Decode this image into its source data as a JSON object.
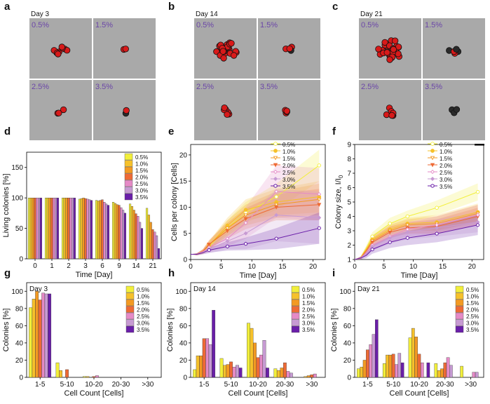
{
  "colors": {
    "series": [
      "#f2ef3a",
      "#f6c12b",
      "#f39a22",
      "#ee6a35",
      "#e58ac6",
      "#c79ad3",
      "#6a1ea9"
    ],
    "micro_bg": "#a9a9a9",
    "cell_red": "#d81a1a",
    "micro_pct_text": "#6b46a8"
  },
  "micro_panels": [
    {
      "letter": "a",
      "day": "Day 3",
      "quads": [
        {
          "label": "0.5%"
        },
        {
          "label": "1.5%"
        },
        {
          "label": "2.5%"
        },
        {
          "label": "3.5%"
        }
      ]
    },
    {
      "letter": "b",
      "day": "Day 14",
      "quads": [
        {
          "label": "0.5%"
        },
        {
          "label": "1.5%"
        },
        {
          "label": "2.5%"
        },
        {
          "label": "3.5%"
        }
      ]
    },
    {
      "letter": "c",
      "day": "Day 21",
      "quads": [
        {
          "label": "0.5%"
        },
        {
          "label": "1.5%"
        },
        {
          "label": "2.5%"
        },
        {
          "label": "3.5%"
        }
      ]
    }
  ],
  "chart_data": [
    {
      "id": "d",
      "type": "bar",
      "xlabel": "Time [Day]",
      "ylabel": "Living colonies [%]",
      "ylim": [
        0,
        175
      ],
      "yticks": [
        0,
        50,
        100,
        150
      ],
      "categories": [
        "0",
        "1",
        "2",
        "3",
        "6",
        "9",
        "14",
        "21"
      ],
      "series": [
        {
          "name": "0.5%",
          "values": [
            100,
            100,
            100,
            98,
            96,
            93,
            90,
            83
          ]
        },
        {
          "name": "1.0%",
          "values": [
            100,
            100,
            100,
            99,
            95,
            91,
            86,
            72
          ]
        },
        {
          "name": "1.5%",
          "values": [
            100,
            100,
            100,
            100,
            96,
            89,
            80,
            60
          ]
        },
        {
          "name": "2.0%",
          "values": [
            100,
            100,
            100,
            99,
            97,
            88,
            74,
            48
          ]
        },
        {
          "name": "2.5%",
          "values": [
            100,
            100,
            100,
            98,
            93,
            84,
            70,
            44
          ]
        },
        {
          "name": "3.0%",
          "values": [
            100,
            100,
            100,
            97,
            90,
            80,
            60,
            38
          ]
        },
        {
          "name": "3.5%",
          "values": [
            100,
            100,
            100,
            96,
            88,
            75,
            50,
            17
          ]
        }
      ]
    },
    {
      "id": "e",
      "type": "line",
      "xlabel": "Time [Day]",
      "ylabel": "Cells per colony [Cells]",
      "xlim": [
        0,
        22
      ],
      "ylim": [
        0,
        22
      ],
      "xticks": [
        0,
        5,
        10,
        15,
        20
      ],
      "yticks": [
        0,
        5,
        10,
        15,
        20
      ],
      "x": [
        0,
        1,
        2,
        3,
        6,
        9,
        14,
        21
      ],
      "series": [
        {
          "name": "0.5%",
          "marker": "circle-open",
          "values": [
            1,
            1,
            1.5,
            2.5,
            6,
            9,
            12,
            18
          ],
          "spread": [
            0,
            0.2,
            0.4,
            0.8,
            1.5,
            2,
            2.5,
            3
          ]
        },
        {
          "name": "1.0%",
          "marker": "circle",
          "values": [
            1,
            1,
            1.5,
            2.7,
            6.5,
            9.5,
            11,
            12
          ],
          "spread": [
            0,
            0.2,
            0.4,
            0.8,
            1.5,
            2,
            2.5,
            3
          ]
        },
        {
          "name": "1.5%",
          "marker": "triangle-down-open",
          "values": [
            1,
            1,
            1.6,
            2.8,
            6,
            8.5,
            10.5,
            11.5
          ],
          "spread": [
            0,
            0.2,
            0.4,
            0.8,
            1.5,
            2,
            2.5,
            3
          ]
        },
        {
          "name": "2.0%",
          "marker": "triangle-down",
          "values": [
            1,
            1,
            1.6,
            2.9,
            5.5,
            7.8,
            10,
            10.5
          ],
          "spread": [
            0,
            0.2,
            0.4,
            0.8,
            1.5,
            2,
            2.5,
            3
          ]
        },
        {
          "name": "2.5%",
          "marker": "diamond-open",
          "values": [
            1,
            1,
            1.5,
            2.3,
            4,
            7,
            13,
            12.5
          ],
          "spread": [
            0,
            0.2,
            0.4,
            0.8,
            1.5,
            3,
            5,
            5
          ]
        },
        {
          "name": "3.0%",
          "marker": "diamond",
          "values": [
            1,
            1,
            1.4,
            2,
            3.5,
            5,
            8.5,
            8
          ],
          "spread": [
            0,
            0.2,
            0.4,
            0.8,
            1.5,
            3,
            5,
            5
          ]
        },
        {
          "name": "3.5%",
          "marker": "hexagon-open",
          "values": [
            1,
            1,
            1.3,
            1.8,
            2.5,
            3,
            4,
            6
          ],
          "spread": [
            0,
            0.2,
            0.3,
            0.5,
            0.8,
            1.2,
            2,
            3
          ]
        }
      ]
    },
    {
      "id": "f",
      "type": "line",
      "xlabel": "Time [Day]",
      "ylabel": "Colony size, I/I",
      "ylabel_sub": "0",
      "xlim": [
        0,
        22
      ],
      "ylim": [
        1,
        9
      ],
      "xticks": [
        0,
        5,
        10,
        15,
        20
      ],
      "yticks": [
        1,
        2,
        3,
        4,
        5,
        6,
        7,
        8,
        9
      ],
      "x": [
        0,
        1,
        2,
        3,
        6,
        9,
        14,
        21
      ],
      "series": [
        {
          "name": "0.5%",
          "marker": "circle-open",
          "values": [
            1,
            1.1,
            1.8,
            2.6,
            3.5,
            4,
            4.6,
            5.7
          ],
          "spread": [
            0,
            0.1,
            0.2,
            0.3,
            0.4,
            0.4,
            0.5,
            0.6
          ]
        },
        {
          "name": "1.0%",
          "marker": "circle",
          "values": [
            1,
            1.1,
            1.7,
            2.4,
            3.1,
            3.5,
            3.6,
            4.3
          ],
          "spread": [
            0,
            0.1,
            0.2,
            0.3,
            0.4,
            0.4,
            0.5,
            0.6
          ]
        },
        {
          "name": "1.5%",
          "marker": "triangle-down-open",
          "values": [
            1,
            1.1,
            1.7,
            2.3,
            3,
            3.4,
            3.5,
            4.2
          ],
          "spread": [
            0,
            0.1,
            0.2,
            0.3,
            0.4,
            0.4,
            0.5,
            0.6
          ]
        },
        {
          "name": "2.0%",
          "marker": "triangle-down",
          "values": [
            1,
            1.1,
            1.6,
            2.2,
            2.9,
            3.2,
            3.3,
            4
          ],
          "spread": [
            0,
            0.1,
            0.2,
            0.3,
            0.4,
            0.4,
            0.5,
            0.6
          ]
        },
        {
          "name": "2.5%",
          "marker": "diamond-open",
          "values": [
            1,
            1.1,
            1.5,
            2,
            2.6,
            3.1,
            3.4,
            4.1
          ],
          "spread": [
            0,
            0.1,
            0.2,
            0.3,
            0.4,
            0.5,
            0.6,
            0.7
          ]
        },
        {
          "name": "3.0%",
          "marker": "diamond",
          "values": [
            1,
            1.1,
            1.4,
            1.9,
            2.5,
            2.9,
            3.2,
            3.6
          ],
          "spread": [
            0,
            0.1,
            0.2,
            0.3,
            0.4,
            0.5,
            0.6,
            0.7
          ]
        },
        {
          "name": "3.5%",
          "marker": "hexagon-open",
          "values": [
            1,
            1.1,
            1.3,
            1.7,
            2.2,
            2.5,
            2.8,
            3.4
          ],
          "spread": [
            0,
            0.1,
            0.2,
            0.3,
            0.4,
            0.5,
            0.6,
            0.7
          ]
        }
      ]
    },
    {
      "id": "g",
      "type": "bar",
      "day": "Day 3",
      "xlabel": "Cell Count [Cells]",
      "ylabel": "Colonies [%]",
      "ylim": [
        0,
        110
      ],
      "yticks": [
        0,
        20,
        40,
        60,
        80,
        100
      ],
      "categories": [
        "1-5",
        "5-10",
        "10-20",
        "20-30",
        ">30"
      ],
      "series": [
        {
          "name": "0.5%",
          "values": [
            81,
            17,
            1,
            0,
            0
          ]
        },
        {
          "name": "1.0%",
          "values": [
            91,
            8,
            1,
            0,
            0
          ]
        },
        {
          "name": "1.5%",
          "values": [
            100,
            0,
            0,
            0,
            0
          ]
        },
        {
          "name": "2.0%",
          "values": [
            90,
            9,
            1,
            0,
            0
          ]
        },
        {
          "name": "2.5%",
          "values": [
            98,
            0,
            2,
            0,
            0
          ]
        },
        {
          "name": "3.0%",
          "values": [
            97,
            0,
            0,
            0,
            0
          ]
        },
        {
          "name": "3.5%",
          "values": [
            97,
            0,
            0,
            0,
            0
          ]
        }
      ]
    },
    {
      "id": "h",
      "type": "bar",
      "day": "Day 14",
      "xlabel": "Cell Count [Cells]",
      "ylabel": "Colonies [%]",
      "ylim": [
        0,
        110
      ],
      "yticks": [
        0,
        20,
        40,
        60,
        80,
        100
      ],
      "categories": [
        "1-5",
        "5-10",
        "10-20",
        "20-30",
        ">30"
      ],
      "series": [
        {
          "name": "0.5%",
          "values": [
            9,
            22,
            63,
            10,
            0
          ]
        },
        {
          "name": "1.0%",
          "values": [
            25,
            14,
            57,
            8,
            1
          ]
        },
        {
          "name": "1.5%",
          "values": [
            25,
            15,
            40,
            11,
            2
          ]
        },
        {
          "name": "2.0%",
          "values": [
            45,
            18,
            23,
            17,
            3
          ]
        },
        {
          "name": "2.5%",
          "values": [
            45,
            12,
            26,
            7,
            4
          ]
        },
        {
          "name": "3.0%",
          "values": [
            38,
            14,
            43,
            5,
            0
          ]
        },
        {
          "name": "3.5%",
          "values": [
            78,
            11,
            11,
            0,
            0
          ]
        }
      ]
    },
    {
      "id": "i",
      "type": "bar",
      "day": "Day 21",
      "xlabel": "Cell Count [Cells]",
      "ylabel": "Colonies [%]",
      "ylim": [
        0,
        110
      ],
      "yticks": [
        0,
        20,
        40,
        60,
        80,
        100
      ],
      "categories": [
        "1-5",
        "5-10",
        "10-20",
        "20-30",
        ">30"
      ],
      "series": [
        {
          "name": "0.5%",
          "values": [
            10,
            16,
            46,
            16,
            13
          ]
        },
        {
          "name": "1.0%",
          "values": [
            12,
            26,
            57,
            8,
            0
          ]
        },
        {
          "name": "1.5%",
          "values": [
            20,
            26,
            47,
            10,
            0
          ]
        },
        {
          "name": "2.0%",
          "values": [
            32,
            27,
            27,
            17,
            0
          ]
        },
        {
          "name": "2.5%",
          "values": [
            38,
            15,
            17,
            23,
            6
          ]
        },
        {
          "name": "3.0%",
          "values": [
            50,
            28,
            0,
            14,
            6
          ]
        },
        {
          "name": "3.5%",
          "values": [
            67,
            17,
            17,
            0,
            0
          ]
        }
      ]
    }
  ]
}
